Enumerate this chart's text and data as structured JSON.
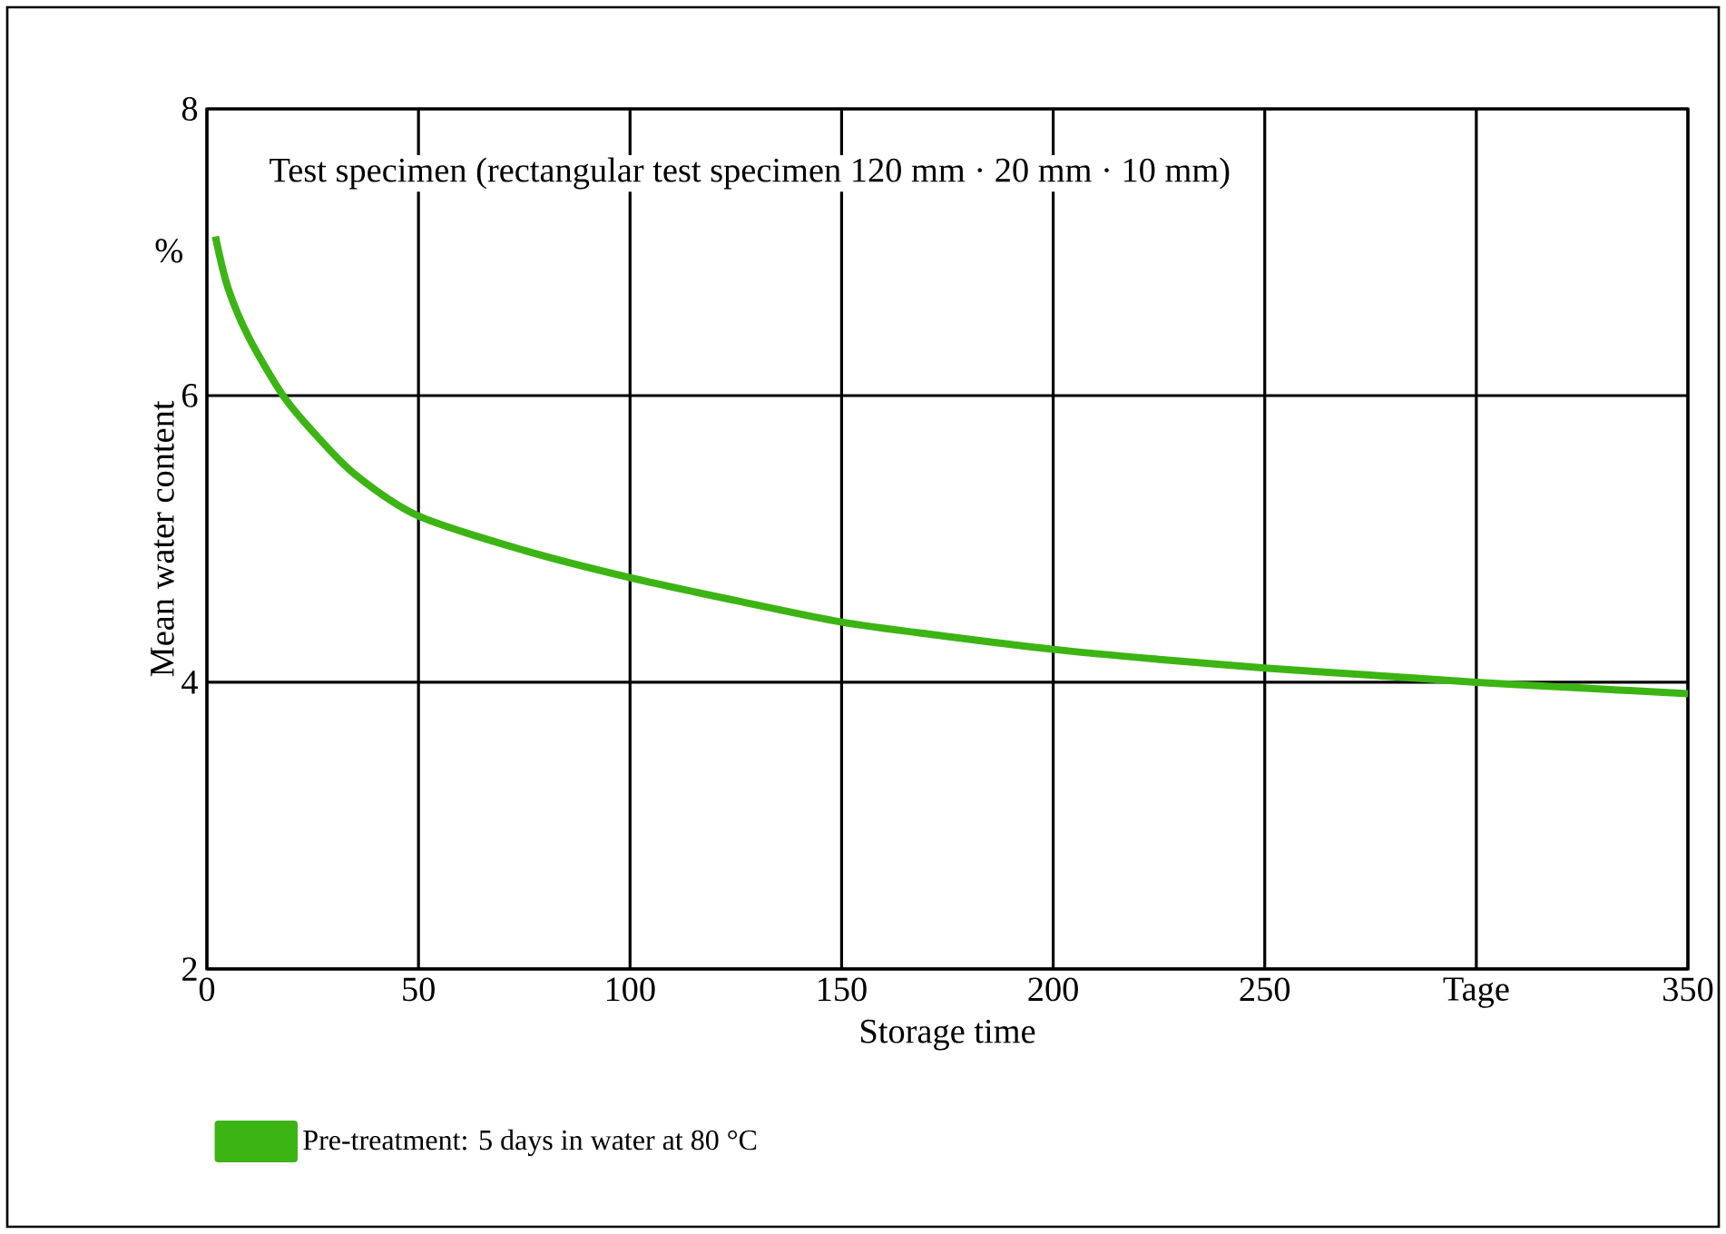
{
  "chart_data": {
    "type": "line",
    "xlabel": "Storage time",
    "ylabel": "Mean water content",
    "annotations": [
      "Test specimen (rectangular test specimen 120 mm · 20 mm · 10 mm)",
      "%"
    ],
    "x": [
      2,
      5,
      10,
      18,
      25,
      35,
      50,
      75,
      100,
      125,
      150,
      175,
      200,
      225,
      250,
      275,
      300,
      325,
      350
    ],
    "series": [
      {
        "name": "Pre-treatment: 5 days in water at 80 °C",
        "color": "#3cb414",
        "values": [
          7.11,
          6.75,
          6.4,
          6.0,
          5.75,
          5.45,
          5.16,
          4.92,
          4.73,
          4.57,
          4.42,
          4.32,
          4.23,
          4.16,
          4.1,
          4.05,
          4.0,
          3.96,
          3.92
        ]
      }
    ],
    "xlim": [
      0,
      350
    ],
    "ylim": [
      2,
      8
    ],
    "xticks": [
      0,
      50,
      100,
      150,
      200,
      250,
      {
        "value": 300,
        "label": "Tage"
      },
      350
    ],
    "yticks": [
      2,
      4,
      6,
      8
    ],
    "grid": true,
    "legend": "bottom",
    "marker": "none",
    "line_style": "solid"
  }
}
